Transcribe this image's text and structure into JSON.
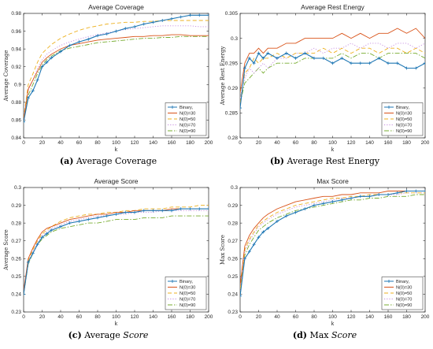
{
  "chart_data": [
    {
      "type": "line",
      "caption_label": "(a)",
      "caption_text": "Average Coverage",
      "caption_italic": "",
      "title": "Average Coverage",
      "xlabel": "k",
      "ylabel": "Average Coverage",
      "xlim": [
        0,
        200
      ],
      "ylim": [
        0.84,
        0.98
      ],
      "xticks": [
        0,
        20,
        40,
        60,
        80,
        100,
        120,
        140,
        160,
        180,
        200
      ],
      "yticks": [
        0.84,
        0.86,
        0.88,
        0.9,
        0.92,
        0.94,
        0.96,
        0.98
      ],
      "ytick_labels": [
        "0.84",
        "0.86",
        "0.88",
        "0.9",
        "0.92",
        "0.94",
        "0.96",
        "0.98"
      ],
      "legend_position": "bottom-right",
      "x": [
        0,
        5,
        10,
        15,
        20,
        25,
        30,
        40,
        50,
        60,
        70,
        80,
        90,
        100,
        110,
        120,
        130,
        140,
        150,
        160,
        170,
        180,
        190,
        200
      ],
      "series": [
        {
          "name": "Binary,",
          "color": "#1f77b4",
          "style": "solid",
          "marker": "+",
          "values": [
            0.858,
            0.885,
            0.893,
            0.905,
            0.92,
            0.925,
            0.93,
            0.937,
            0.944,
            0.948,
            0.951,
            0.955,
            0.957,
            0.96,
            0.963,
            0.965,
            0.968,
            0.97,
            0.972,
            0.974,
            0.976,
            0.978,
            0.978,
            0.978
          ]
        },
        {
          "name": "N(0)=30",
          "color": "#d95319",
          "style": "solid",
          "marker": "",
          "values": [
            0.86,
            0.895,
            0.905,
            0.915,
            0.925,
            0.93,
            0.934,
            0.94,
            0.944,
            0.946,
            0.948,
            0.95,
            0.951,
            0.952,
            0.953,
            0.954,
            0.954,
            0.955,
            0.955,
            0.956,
            0.956,
            0.955,
            0.955,
            0.955
          ]
        },
        {
          "name": "N(0)=50",
          "color": "#edb120",
          "style": "dashed",
          "marker": "",
          "values": [
            0.862,
            0.9,
            0.912,
            0.925,
            0.935,
            0.94,
            0.945,
            0.952,
            0.957,
            0.961,
            0.964,
            0.966,
            0.968,
            0.969,
            0.97,
            0.97,
            0.971,
            0.971,
            0.972,
            0.972,
            0.972,
            0.972,
            0.972,
            0.972
          ]
        },
        {
          "name": "N(0)=70",
          "color": "#c58be0",
          "style": "dotted",
          "marker": "",
          "values": [
            0.86,
            0.893,
            0.905,
            0.918,
            0.928,
            0.934,
            0.938,
            0.944,
            0.948,
            0.951,
            0.954,
            0.956,
            0.958,
            0.96,
            0.962,
            0.963,
            0.964,
            0.965,
            0.966,
            0.966,
            0.966,
            0.966,
            0.965,
            0.965
          ]
        },
        {
          "name": "N(0)=90",
          "color": "#77ac30",
          "style": "dashdot",
          "marker": "",
          "values": [
            0.858,
            0.888,
            0.9,
            0.912,
            0.922,
            0.928,
            0.932,
            0.938,
            0.941,
            0.943,
            0.945,
            0.947,
            0.948,
            0.949,
            0.95,
            0.951,
            0.952,
            0.952,
            0.953,
            0.953,
            0.954,
            0.954,
            0.954,
            0.954
          ]
        }
      ]
    },
    {
      "type": "line",
      "caption_label": "(b)",
      "caption_text": "Average Rest Energy",
      "caption_italic": "",
      "title": "Average Rest Energy",
      "xlabel": "k",
      "ylabel": "Average Rest Energy",
      "xlim": [
        0,
        200
      ],
      "ylim": [
        0.28,
        0.305
      ],
      "xticks": [
        0,
        20,
        40,
        60,
        80,
        100,
        120,
        140,
        160,
        180,
        200
      ],
      "yticks": [
        0.28,
        0.285,
        0.29,
        0.295,
        0.3,
        0.305
      ],
      "ytick_labels": [
        "0.28",
        "0.285",
        "0.29",
        "0.295",
        "0.3",
        "0.305"
      ],
      "legend_position": "bottom-right",
      "x": [
        0,
        5,
        10,
        15,
        20,
        25,
        30,
        40,
        50,
        60,
        70,
        80,
        90,
        100,
        110,
        120,
        130,
        140,
        150,
        160,
        170,
        180,
        190,
        200
      ],
      "series": [
        {
          "name": "Binary,",
          "color": "#1f77b4",
          "style": "solid",
          "marker": "+",
          "values": [
            0.286,
            0.294,
            0.296,
            0.295,
            0.297,
            0.296,
            0.297,
            0.296,
            0.297,
            0.296,
            0.297,
            0.296,
            0.296,
            0.295,
            0.296,
            0.295,
            0.295,
            0.295,
            0.296,
            0.295,
            0.295,
            0.294,
            0.294,
            0.295
          ]
        },
        {
          "name": "N(0)=30",
          "color": "#d95319",
          "style": "solid",
          "marker": "",
          "values": [
            0.289,
            0.295,
            0.297,
            0.297,
            0.298,
            0.297,
            0.298,
            0.298,
            0.299,
            0.299,
            0.3,
            0.3,
            0.3,
            0.3,
            0.301,
            0.3,
            0.301,
            0.3,
            0.301,
            0.301,
            0.302,
            0.301,
            0.302,
            0.3
          ]
        },
        {
          "name": "N(0)=50",
          "color": "#edb120",
          "style": "dashed",
          "marker": "",
          "values": [
            0.287,
            0.293,
            0.294,
            0.296,
            0.295,
            0.296,
            0.296,
            0.297,
            0.296,
            0.297,
            0.297,
            0.297,
            0.298,
            0.297,
            0.298,
            0.297,
            0.298,
            0.298,
            0.297,
            0.298,
            0.298,
            0.297,
            0.298,
            0.297
          ]
        },
        {
          "name": "N(0)=70",
          "color": "#c58be0",
          "style": "dotted",
          "marker": "",
          "values": [
            0.288,
            0.292,
            0.294,
            0.293,
            0.294,
            0.295,
            0.294,
            0.296,
            0.296,
            0.297,
            0.297,
            0.298,
            0.297,
            0.298,
            0.298,
            0.299,
            0.298,
            0.299,
            0.299,
            0.298,
            0.299,
            0.299,
            0.298,
            0.299
          ]
        },
        {
          "name": "N(0)=90",
          "color": "#77ac30",
          "style": "dashdot",
          "marker": "",
          "values": [
            0.287,
            0.291,
            0.292,
            0.293,
            0.294,
            0.293,
            0.294,
            0.295,
            0.295,
            0.295,
            0.296,
            0.296,
            0.296,
            0.296,
            0.297,
            0.296,
            0.297,
            0.297,
            0.296,
            0.297,
            0.297,
            0.297,
            0.297,
            0.296
          ]
        }
      ]
    },
    {
      "type": "line",
      "caption_label": "(c)",
      "caption_text": "Average ",
      "caption_italic": "Score",
      "title": "Average Score",
      "xlabel": "k",
      "ylabel": "Average Score",
      "xlim": [
        0,
        200
      ],
      "ylim": [
        0.23,
        0.3
      ],
      "xticks": [
        0,
        20,
        40,
        60,
        80,
        100,
        120,
        140,
        160,
        180,
        200
      ],
      "yticks": [
        0.23,
        0.24,
        0.25,
        0.26,
        0.27,
        0.28,
        0.29,
        0.3
      ],
      "ytick_labels": [
        "0.23",
        "0.24",
        "0.25",
        "0.26",
        "0.27",
        "0.28",
        "0.29",
        "0.3"
      ],
      "legend_position": "bottom-right",
      "x": [
        0,
        5,
        10,
        15,
        20,
        25,
        30,
        40,
        50,
        60,
        70,
        80,
        90,
        100,
        110,
        120,
        130,
        140,
        150,
        160,
        170,
        180,
        190,
        200
      ],
      "series": [
        {
          "name": "Binary,",
          "color": "#1f77b4",
          "style": "solid",
          "marker": "+",
          "values": [
            0.24,
            0.258,
            0.263,
            0.268,
            0.272,
            0.274,
            0.276,
            0.278,
            0.28,
            0.281,
            0.282,
            0.283,
            0.284,
            0.285,
            0.286,
            0.286,
            0.287,
            0.287,
            0.287,
            0.287,
            0.288,
            0.288,
            0.288,
            0.288
          ]
        },
        {
          "name": "N(0)=30",
          "color": "#d95319",
          "style": "solid",
          "marker": "",
          "values": [
            0.242,
            0.26,
            0.266,
            0.271,
            0.275,
            0.277,
            0.278,
            0.28,
            0.282,
            0.283,
            0.284,
            0.285,
            0.285,
            0.286,
            0.286,
            0.287,
            0.287,
            0.287,
            0.287,
            0.288,
            0.288,
            0.288,
            0.288,
            0.288
          ]
        },
        {
          "name": "N(0)=50",
          "color": "#edb120",
          "style": "dashed",
          "marker": "",
          "values": [
            0.241,
            0.259,
            0.265,
            0.27,
            0.274,
            0.276,
            0.278,
            0.281,
            0.283,
            0.284,
            0.285,
            0.285,
            0.286,
            0.286,
            0.287,
            0.287,
            0.288,
            0.288,
            0.288,
            0.289,
            0.289,
            0.289,
            0.29,
            0.29
          ]
        },
        {
          "name": "N(0)=70",
          "color": "#c58be0",
          "style": "dotted",
          "marker": "",
          "values": [
            0.241,
            0.258,
            0.264,
            0.269,
            0.273,
            0.275,
            0.277,
            0.279,
            0.281,
            0.282,
            0.283,
            0.284,
            0.284,
            0.285,
            0.285,
            0.286,
            0.286,
            0.286,
            0.287,
            0.287,
            0.287,
            0.287,
            0.287,
            0.287
          ]
        },
        {
          "name": "N(0)=90",
          "color": "#77ac30",
          "style": "dashdot",
          "marker": "",
          "values": [
            0.24,
            0.257,
            0.263,
            0.268,
            0.271,
            0.273,
            0.275,
            0.277,
            0.278,
            0.279,
            0.28,
            0.28,
            0.281,
            0.282,
            0.282,
            0.282,
            0.283,
            0.283,
            0.283,
            0.284,
            0.284,
            0.284,
            0.284,
            0.284
          ]
        }
      ]
    },
    {
      "type": "line",
      "caption_label": "(d)",
      "caption_text": "Max ",
      "caption_italic": "Score",
      "title": "Max Score",
      "xlabel": "k",
      "ylabel": "Max Score",
      "xlim": [
        0,
        200
      ],
      "ylim": [
        0.23,
        0.3
      ],
      "xticks": [
        0,
        20,
        40,
        60,
        80,
        100,
        120,
        140,
        160,
        180,
        200
      ],
      "yticks": [
        0.23,
        0.24,
        0.25,
        0.26,
        0.27,
        0.28,
        0.29,
        0.3
      ],
      "ytick_labels": [
        "0.23",
        "0.24",
        "0.25",
        "0.26",
        "0.27",
        "0.28",
        "0.29",
        "0.3"
      ],
      "legend_position": "bottom-right",
      "x": [
        0,
        5,
        10,
        15,
        20,
        25,
        30,
        40,
        50,
        60,
        70,
        80,
        90,
        100,
        110,
        120,
        130,
        140,
        150,
        160,
        170,
        180,
        190,
        200
      ],
      "series": [
        {
          "name": "Binary,",
          "color": "#1f77b4",
          "style": "solid",
          "marker": "+",
          "values": [
            0.239,
            0.26,
            0.264,
            0.268,
            0.272,
            0.275,
            0.277,
            0.281,
            0.284,
            0.286,
            0.288,
            0.29,
            0.291,
            0.292,
            0.293,
            0.294,
            0.295,
            0.295,
            0.296,
            0.296,
            0.297,
            0.298,
            0.298,
            0.298
          ]
        },
        {
          "name": "N(0)=30",
          "color": "#d95319",
          "style": "solid",
          "marker": "",
          "values": [
            0.245,
            0.267,
            0.273,
            0.277,
            0.28,
            0.283,
            0.285,
            0.288,
            0.29,
            0.292,
            0.293,
            0.294,
            0.295,
            0.295,
            0.296,
            0.296,
            0.297,
            0.297,
            0.297,
            0.298,
            0.298,
            0.298,
            0.298,
            0.298
          ]
        },
        {
          "name": "N(0)=50",
          "color": "#edb120",
          "style": "dashed",
          "marker": "",
          "values": [
            0.243,
            0.265,
            0.271,
            0.275,
            0.279,
            0.281,
            0.283,
            0.286,
            0.288,
            0.29,
            0.291,
            0.292,
            0.293,
            0.294,
            0.294,
            0.295,
            0.295,
            0.296,
            0.296,
            0.296,
            0.297,
            0.297,
            0.297,
            0.297
          ]
        },
        {
          "name": "N(0)=70",
          "color": "#c58be0",
          "style": "dotted",
          "marker": "",
          "values": [
            0.242,
            0.264,
            0.27,
            0.274,
            0.278,
            0.28,
            0.282,
            0.285,
            0.287,
            0.289,
            0.29,
            0.291,
            0.292,
            0.293,
            0.294,
            0.294,
            0.295,
            0.295,
            0.296,
            0.296,
            0.296,
            0.297,
            0.297,
            0.297
          ]
        },
        {
          "name": "N(0)=90",
          "color": "#77ac30",
          "style": "dashdot",
          "marker": "",
          "values": [
            0.24,
            0.262,
            0.268,
            0.272,
            0.276,
            0.278,
            0.28,
            0.283,
            0.285,
            0.287,
            0.288,
            0.289,
            0.29,
            0.291,
            0.292,
            0.293,
            0.293,
            0.294,
            0.294,
            0.295,
            0.295,
            0.295,
            0.296,
            0.296
          ]
        }
      ]
    }
  ]
}
